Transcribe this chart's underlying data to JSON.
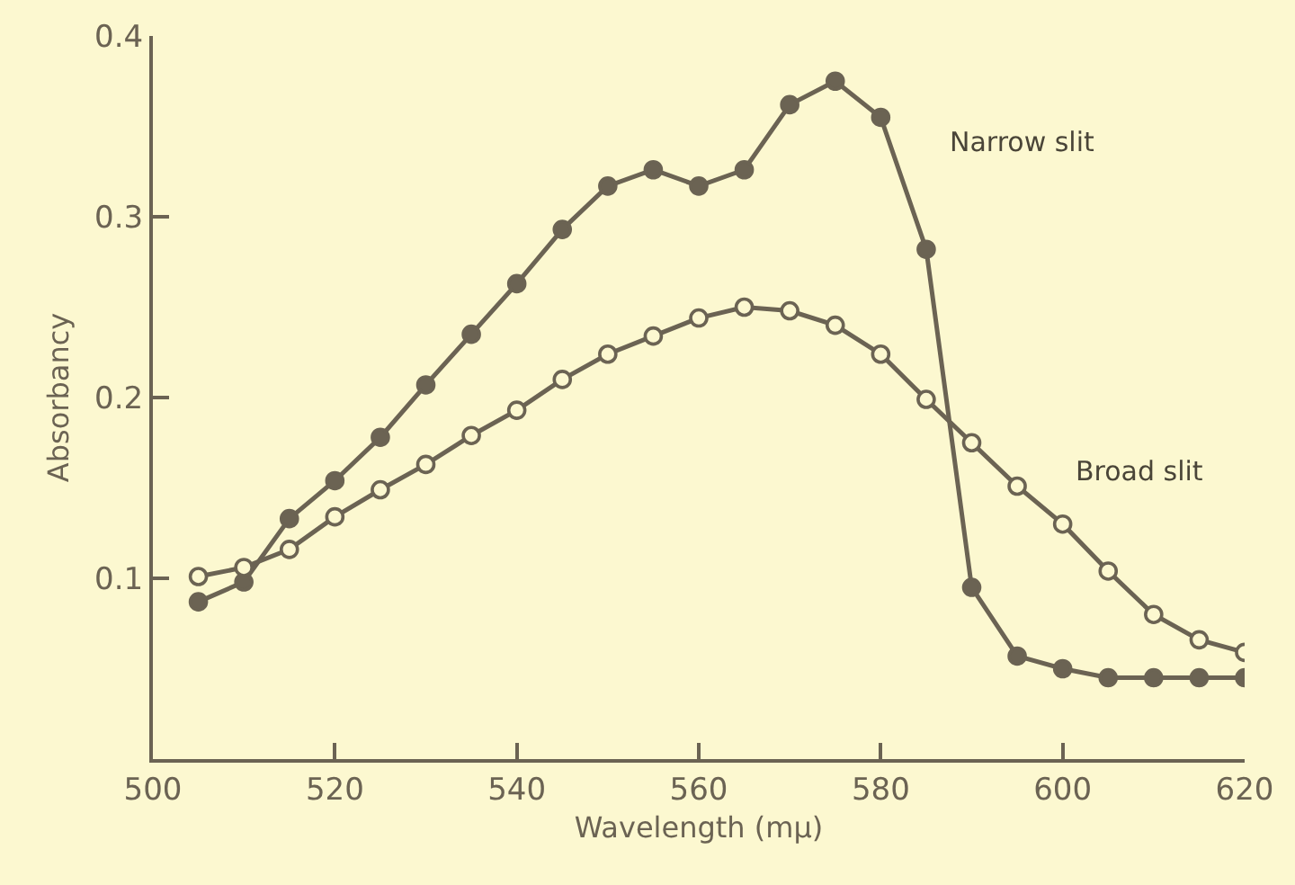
{
  "chart_data": {
    "type": "line",
    "xlabel": "Wavelength (mμ)",
    "ylabel": "Absorbancy",
    "x": [
      505,
      510,
      515,
      520,
      525,
      530,
      535,
      540,
      545,
      550,
      555,
      560,
      565,
      570,
      575,
      580,
      585,
      590,
      595,
      600,
      605,
      610,
      615,
      620
    ],
    "series": [
      {
        "name": "Narrow slit",
        "color": "#6b6353",
        "marker": "circle",
        "values": [
          0.087,
          0.098,
          0.133,
          0.154,
          0.178,
          0.207,
          0.235,
          0.263,
          0.293,
          0.317,
          0.326,
          0.317,
          0.326,
          0.362,
          0.375,
          0.355,
          0.282,
          0.095,
          0.057,
          0.05,
          0.045,
          0.045,
          0.045,
          0.045
        ]
      },
      {
        "name": "Broad slit",
        "color": "#6b6353",
        "marker": "circle-open",
        "values": [
          0.101,
          0.106,
          0.116,
          0.134,
          0.149,
          0.163,
          0.179,
          0.193,
          0.21,
          0.224,
          0.234,
          0.244,
          0.25,
          0.248,
          0.24,
          0.224,
          0.199,
          0.175,
          0.151,
          0.13,
          0.104,
          0.08,
          0.066,
          0.059
        ]
      }
    ],
    "xlim": [
      500,
      620
    ],
    "xticks": [
      500,
      520,
      540,
      560,
      580,
      600,
      620
    ],
    "ylim": [
      0,
      0.4
    ],
    "yticks": [
      0.1,
      0.2,
      0.3,
      0.4
    ],
    "grid": false,
    "legend": false,
    "line_style": "solid"
  }
}
